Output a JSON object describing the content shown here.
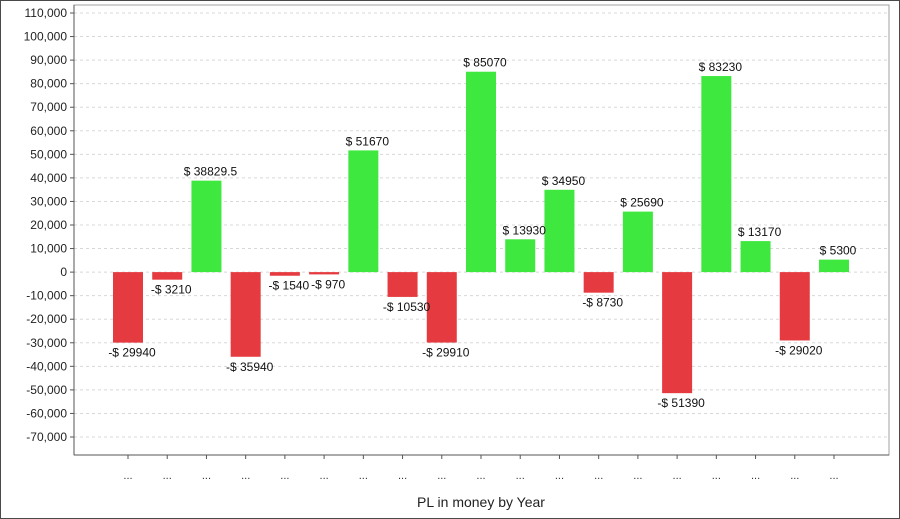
{
  "chart_data": {
    "type": "bar",
    "xlabel": "PL in money by Year",
    "ylabel": "",
    "ylim": [
      -80000,
      110000
    ],
    "y_ticks": [
      110000,
      100000,
      90000,
      80000,
      70000,
      60000,
      50000,
      40000,
      30000,
      20000,
      10000,
      0,
      -10000,
      -20000,
      -30000,
      -40000,
      -50000,
      -60000,
      -70000
    ],
    "y_tick_labels": [
      "110,000",
      "100,000",
      "90,000",
      "80,000",
      "70,000",
      "60,000",
      "50,000",
      "40,000",
      "30,000",
      "20,000",
      "10,000",
      "0",
      "-10,000",
      "-20,000",
      "-30,000",
      "-40,000",
      "-50,000",
      "-60,000",
      "-70,000"
    ],
    "grid": true,
    "categories": [
      "...",
      "...",
      "...",
      "...",
      "...",
      "...",
      "...",
      "...",
      "...",
      "...",
      "...",
      "...",
      "...",
      "...",
      "...",
      "...",
      "...",
      "...",
      "..."
    ],
    "values": [
      -29940,
      -3210,
      38829.5,
      -35940,
      -1540,
      -970,
      51670,
      -10530,
      -29910,
      85070,
      13930,
      34950,
      -8730,
      25690,
      -51390,
      83230,
      13170,
      -29020,
      5300
    ],
    "data_labels": [
      "-$ 29940",
      "-$ 3210",
      "$ 38829.5",
      "-$ 35940",
      "-$ 1540",
      "-$ 970",
      "$ 51670",
      "-$ 10530",
      "-$ 29910",
      "$ 85070",
      "$ 13930",
      "$ 34950",
      "-$ 8730",
      "$ 25690",
      "-$ 51390",
      "$ 83230",
      "$ 13170",
      "-$ 29020",
      "$ 5300"
    ],
    "colors": {
      "positive": "#3fe83f",
      "negative": "#e53a3f",
      "grid": "#d8d8d8",
      "axis": "#555555",
      "plot_border": "#a0a0a0"
    }
  }
}
